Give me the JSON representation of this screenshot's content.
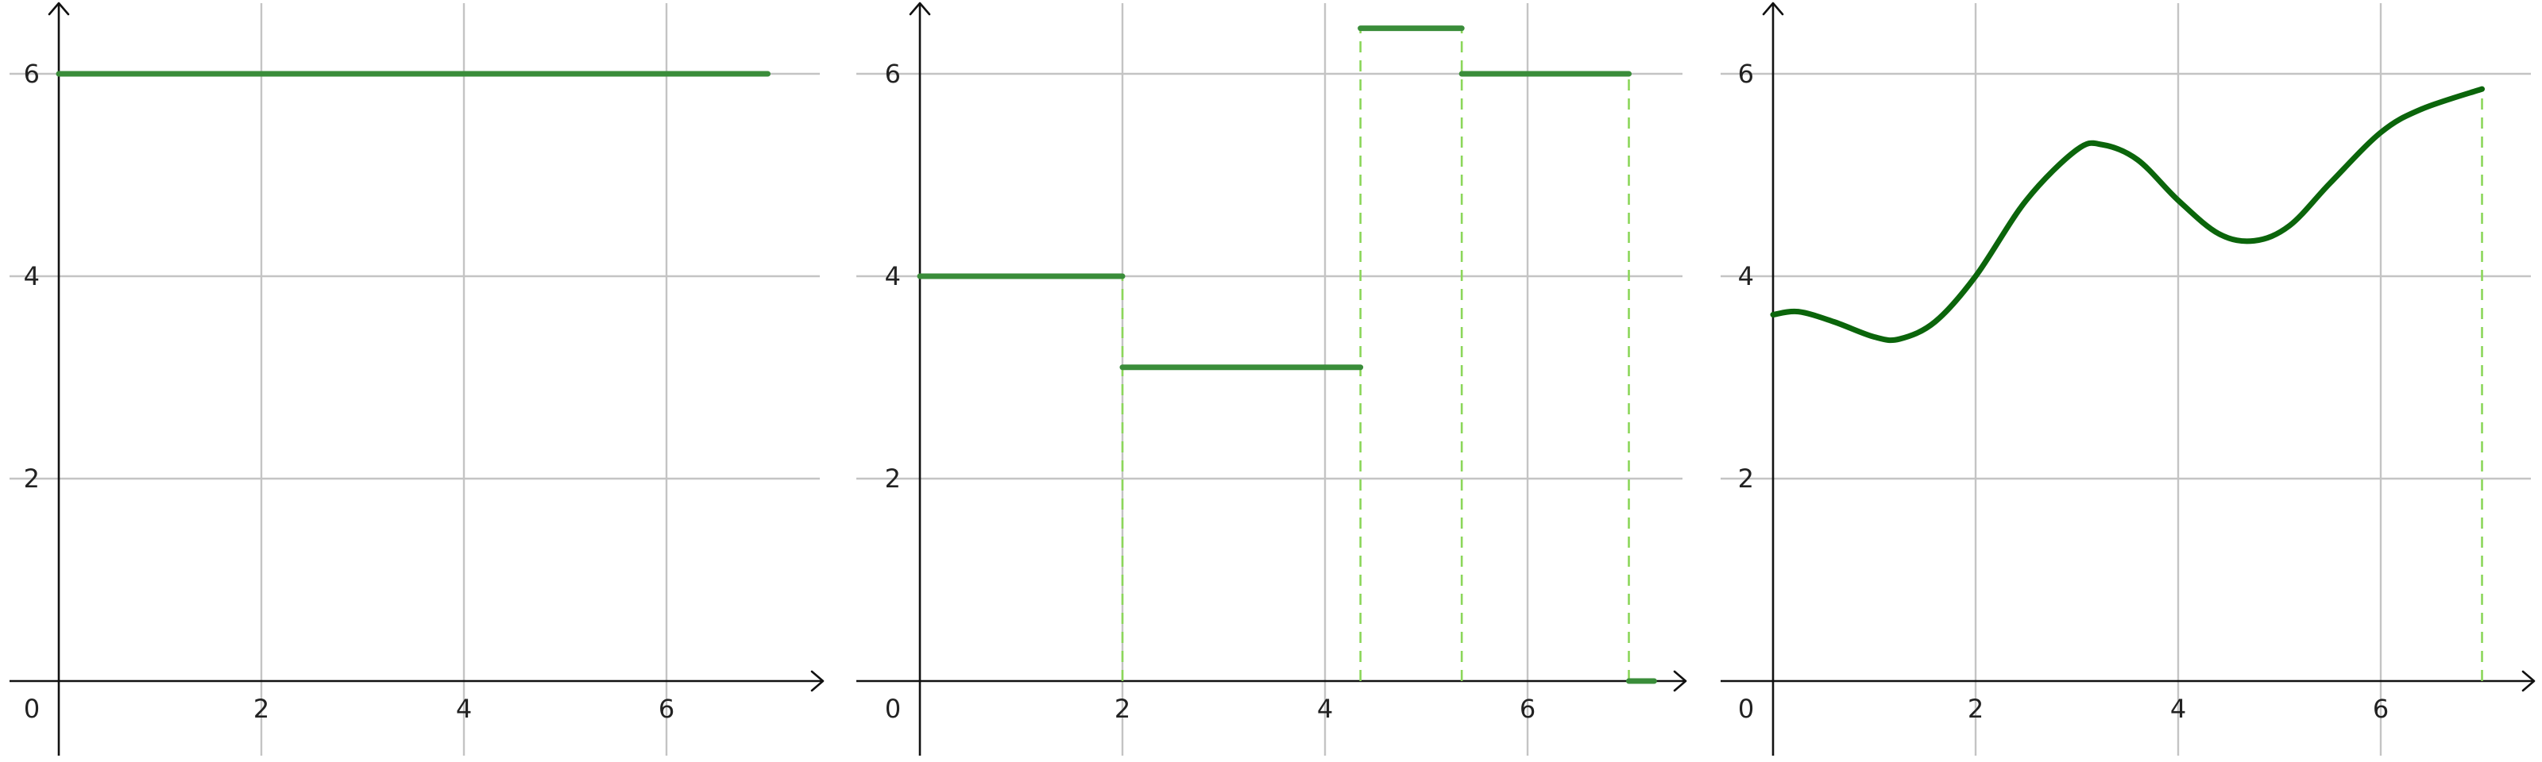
{
  "colors": {
    "segment": "#3a8d3a",
    "curve": "#0b650b",
    "guide": "#8bd65a",
    "grid": "#c4c4c4",
    "axis": "#111111"
  },
  "chart_data": [
    {
      "type": "line",
      "title": "",
      "xlabel": "",
      "ylabel": "",
      "xlim": [
        0,
        7.6
      ],
      "ylim": [
        -0.7,
        6.7
      ],
      "origin_label": "0",
      "x_ticks": [
        2,
        4,
        6
      ],
      "x_tick_labels": [
        "2",
        "4",
        "6"
      ],
      "y_ticks": [
        2,
        4,
        6
      ],
      "y_tick_labels": [
        "2",
        "4",
        "6"
      ],
      "grid": true,
      "segments": [
        {
          "x0": 0,
          "x1": 7,
          "y": 6
        }
      ],
      "guides": [],
      "curve": []
    },
    {
      "type": "line",
      "title": "",
      "xlabel": "",
      "ylabel": "",
      "xlim": [
        0,
        7.6
      ],
      "ylim": [
        -0.7,
        6.7
      ],
      "origin_label": "0",
      "x_ticks": [
        2,
        4,
        6
      ],
      "x_tick_labels": [
        "2",
        "4",
        "6"
      ],
      "y_ticks": [
        2,
        4,
        6
      ],
      "y_tick_labels": [
        "2",
        "4",
        "6"
      ],
      "grid": true,
      "segments": [
        {
          "x0": 0,
          "x1": 2,
          "y": 4
        },
        {
          "x0": 2,
          "x1": 4.35,
          "y": 3.1
        },
        {
          "x0": 4.35,
          "x1": 5.35,
          "y": 6.45
        },
        {
          "x0": 5.35,
          "x1": 7,
          "y": 6
        },
        {
          "x0": 7,
          "x1": 7.25,
          "y": 0
        }
      ],
      "guides": [
        {
          "x": 2,
          "y0": 0,
          "y1": 4
        },
        {
          "x": 4.35,
          "y0": 0,
          "y1": 6.45
        },
        {
          "x": 5.35,
          "y0": 0,
          "y1": 6.45
        },
        {
          "x": 7,
          "y0": 0,
          "y1": 6
        }
      ],
      "curve": []
    },
    {
      "type": "line",
      "title": "",
      "xlabel": "",
      "ylabel": "",
      "xlim": [
        0,
        7.6
      ],
      "ylim": [
        -0.7,
        6.7
      ],
      "origin_label": "0",
      "x_ticks": [
        2,
        4,
        6
      ],
      "x_tick_labels": [
        "2",
        "4",
        "6"
      ],
      "y_ticks": [
        2,
        4,
        6
      ],
      "y_tick_labels": [
        "2",
        "4",
        "6"
      ],
      "grid": true,
      "segments": [],
      "guides": [
        {
          "x": 7,
          "y0": 0,
          "y1": 5.85
        }
      ],
      "curve": [
        {
          "x": 0,
          "y": 3.62
        },
        {
          "x": 0.25,
          "y": 3.65
        },
        {
          "x": 0.6,
          "y": 3.55
        },
        {
          "x": 1.0,
          "y": 3.4
        },
        {
          "x": 1.25,
          "y": 3.38
        },
        {
          "x": 1.6,
          "y": 3.55
        },
        {
          "x": 2.0,
          "y": 4.0
        },
        {
          "x": 2.5,
          "y": 4.75
        },
        {
          "x": 3.0,
          "y": 5.25
        },
        {
          "x": 3.25,
          "y": 5.3
        },
        {
          "x": 3.6,
          "y": 5.15
        },
        {
          "x": 4.0,
          "y": 4.75
        },
        {
          "x": 4.4,
          "y": 4.42
        },
        {
          "x": 4.75,
          "y": 4.35
        },
        {
          "x": 5.1,
          "y": 4.5
        },
        {
          "x": 5.5,
          "y": 4.92
        },
        {
          "x": 6.0,
          "y": 5.42
        },
        {
          "x": 6.4,
          "y": 5.65
        },
        {
          "x": 7.0,
          "y": 5.85
        }
      ]
    }
  ]
}
